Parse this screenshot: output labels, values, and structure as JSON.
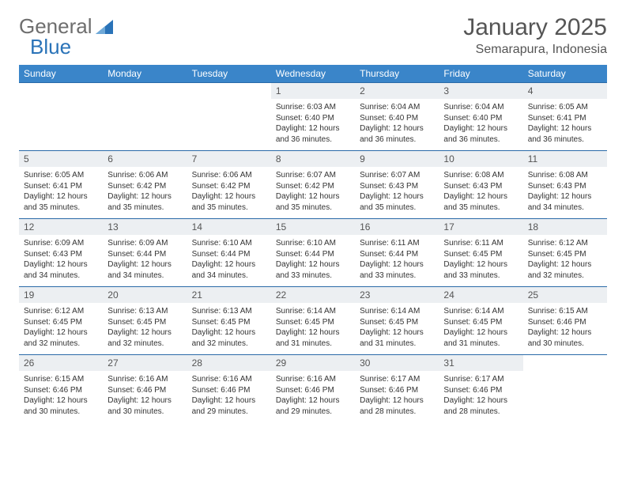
{
  "brand": {
    "part1": "General",
    "part2": "Blue"
  },
  "title": "January 2025",
  "location": "Semarapura, Indonesia",
  "colors": {
    "header_bg": "#3a85c9",
    "border": "#2a6aa8",
    "daynum_bg": "#eceff2",
    "text": "#333333"
  },
  "weekdays": [
    "Sunday",
    "Monday",
    "Tuesday",
    "Wednesday",
    "Thursday",
    "Friday",
    "Saturday"
  ],
  "weeks": [
    [
      null,
      null,
      null,
      {
        "n": "1",
        "sr": "6:03 AM",
        "ss": "6:40 PM",
        "dl": "12 hours and 36 minutes."
      },
      {
        "n": "2",
        "sr": "6:04 AM",
        "ss": "6:40 PM",
        "dl": "12 hours and 36 minutes."
      },
      {
        "n": "3",
        "sr": "6:04 AM",
        "ss": "6:40 PM",
        "dl": "12 hours and 36 minutes."
      },
      {
        "n": "4",
        "sr": "6:05 AM",
        "ss": "6:41 PM",
        "dl": "12 hours and 36 minutes."
      }
    ],
    [
      {
        "n": "5",
        "sr": "6:05 AM",
        "ss": "6:41 PM",
        "dl": "12 hours and 35 minutes."
      },
      {
        "n": "6",
        "sr": "6:06 AM",
        "ss": "6:42 PM",
        "dl": "12 hours and 35 minutes."
      },
      {
        "n": "7",
        "sr": "6:06 AM",
        "ss": "6:42 PM",
        "dl": "12 hours and 35 minutes."
      },
      {
        "n": "8",
        "sr": "6:07 AM",
        "ss": "6:42 PM",
        "dl": "12 hours and 35 minutes."
      },
      {
        "n": "9",
        "sr": "6:07 AM",
        "ss": "6:43 PM",
        "dl": "12 hours and 35 minutes."
      },
      {
        "n": "10",
        "sr": "6:08 AM",
        "ss": "6:43 PM",
        "dl": "12 hours and 35 minutes."
      },
      {
        "n": "11",
        "sr": "6:08 AM",
        "ss": "6:43 PM",
        "dl": "12 hours and 34 minutes."
      }
    ],
    [
      {
        "n": "12",
        "sr": "6:09 AM",
        "ss": "6:43 PM",
        "dl": "12 hours and 34 minutes."
      },
      {
        "n": "13",
        "sr": "6:09 AM",
        "ss": "6:44 PM",
        "dl": "12 hours and 34 minutes."
      },
      {
        "n": "14",
        "sr": "6:10 AM",
        "ss": "6:44 PM",
        "dl": "12 hours and 34 minutes."
      },
      {
        "n": "15",
        "sr": "6:10 AM",
        "ss": "6:44 PM",
        "dl": "12 hours and 33 minutes."
      },
      {
        "n": "16",
        "sr": "6:11 AM",
        "ss": "6:44 PM",
        "dl": "12 hours and 33 minutes."
      },
      {
        "n": "17",
        "sr": "6:11 AM",
        "ss": "6:45 PM",
        "dl": "12 hours and 33 minutes."
      },
      {
        "n": "18",
        "sr": "6:12 AM",
        "ss": "6:45 PM",
        "dl": "12 hours and 32 minutes."
      }
    ],
    [
      {
        "n": "19",
        "sr": "6:12 AM",
        "ss": "6:45 PM",
        "dl": "12 hours and 32 minutes."
      },
      {
        "n": "20",
        "sr": "6:13 AM",
        "ss": "6:45 PM",
        "dl": "12 hours and 32 minutes."
      },
      {
        "n": "21",
        "sr": "6:13 AM",
        "ss": "6:45 PM",
        "dl": "12 hours and 32 minutes."
      },
      {
        "n": "22",
        "sr": "6:14 AM",
        "ss": "6:45 PM",
        "dl": "12 hours and 31 minutes."
      },
      {
        "n": "23",
        "sr": "6:14 AM",
        "ss": "6:45 PM",
        "dl": "12 hours and 31 minutes."
      },
      {
        "n": "24",
        "sr": "6:14 AM",
        "ss": "6:45 PM",
        "dl": "12 hours and 31 minutes."
      },
      {
        "n": "25",
        "sr": "6:15 AM",
        "ss": "6:46 PM",
        "dl": "12 hours and 30 minutes."
      }
    ],
    [
      {
        "n": "26",
        "sr": "6:15 AM",
        "ss": "6:46 PM",
        "dl": "12 hours and 30 minutes."
      },
      {
        "n": "27",
        "sr": "6:16 AM",
        "ss": "6:46 PM",
        "dl": "12 hours and 30 minutes."
      },
      {
        "n": "28",
        "sr": "6:16 AM",
        "ss": "6:46 PM",
        "dl": "12 hours and 29 minutes."
      },
      {
        "n": "29",
        "sr": "6:16 AM",
        "ss": "6:46 PM",
        "dl": "12 hours and 29 minutes."
      },
      {
        "n": "30",
        "sr": "6:17 AM",
        "ss": "6:46 PM",
        "dl": "12 hours and 28 minutes."
      },
      {
        "n": "31",
        "sr": "6:17 AM",
        "ss": "6:46 PM",
        "dl": "12 hours and 28 minutes."
      },
      null
    ]
  ],
  "labels": {
    "sunrise": "Sunrise:",
    "sunset": "Sunset:",
    "daylight": "Daylight:"
  }
}
